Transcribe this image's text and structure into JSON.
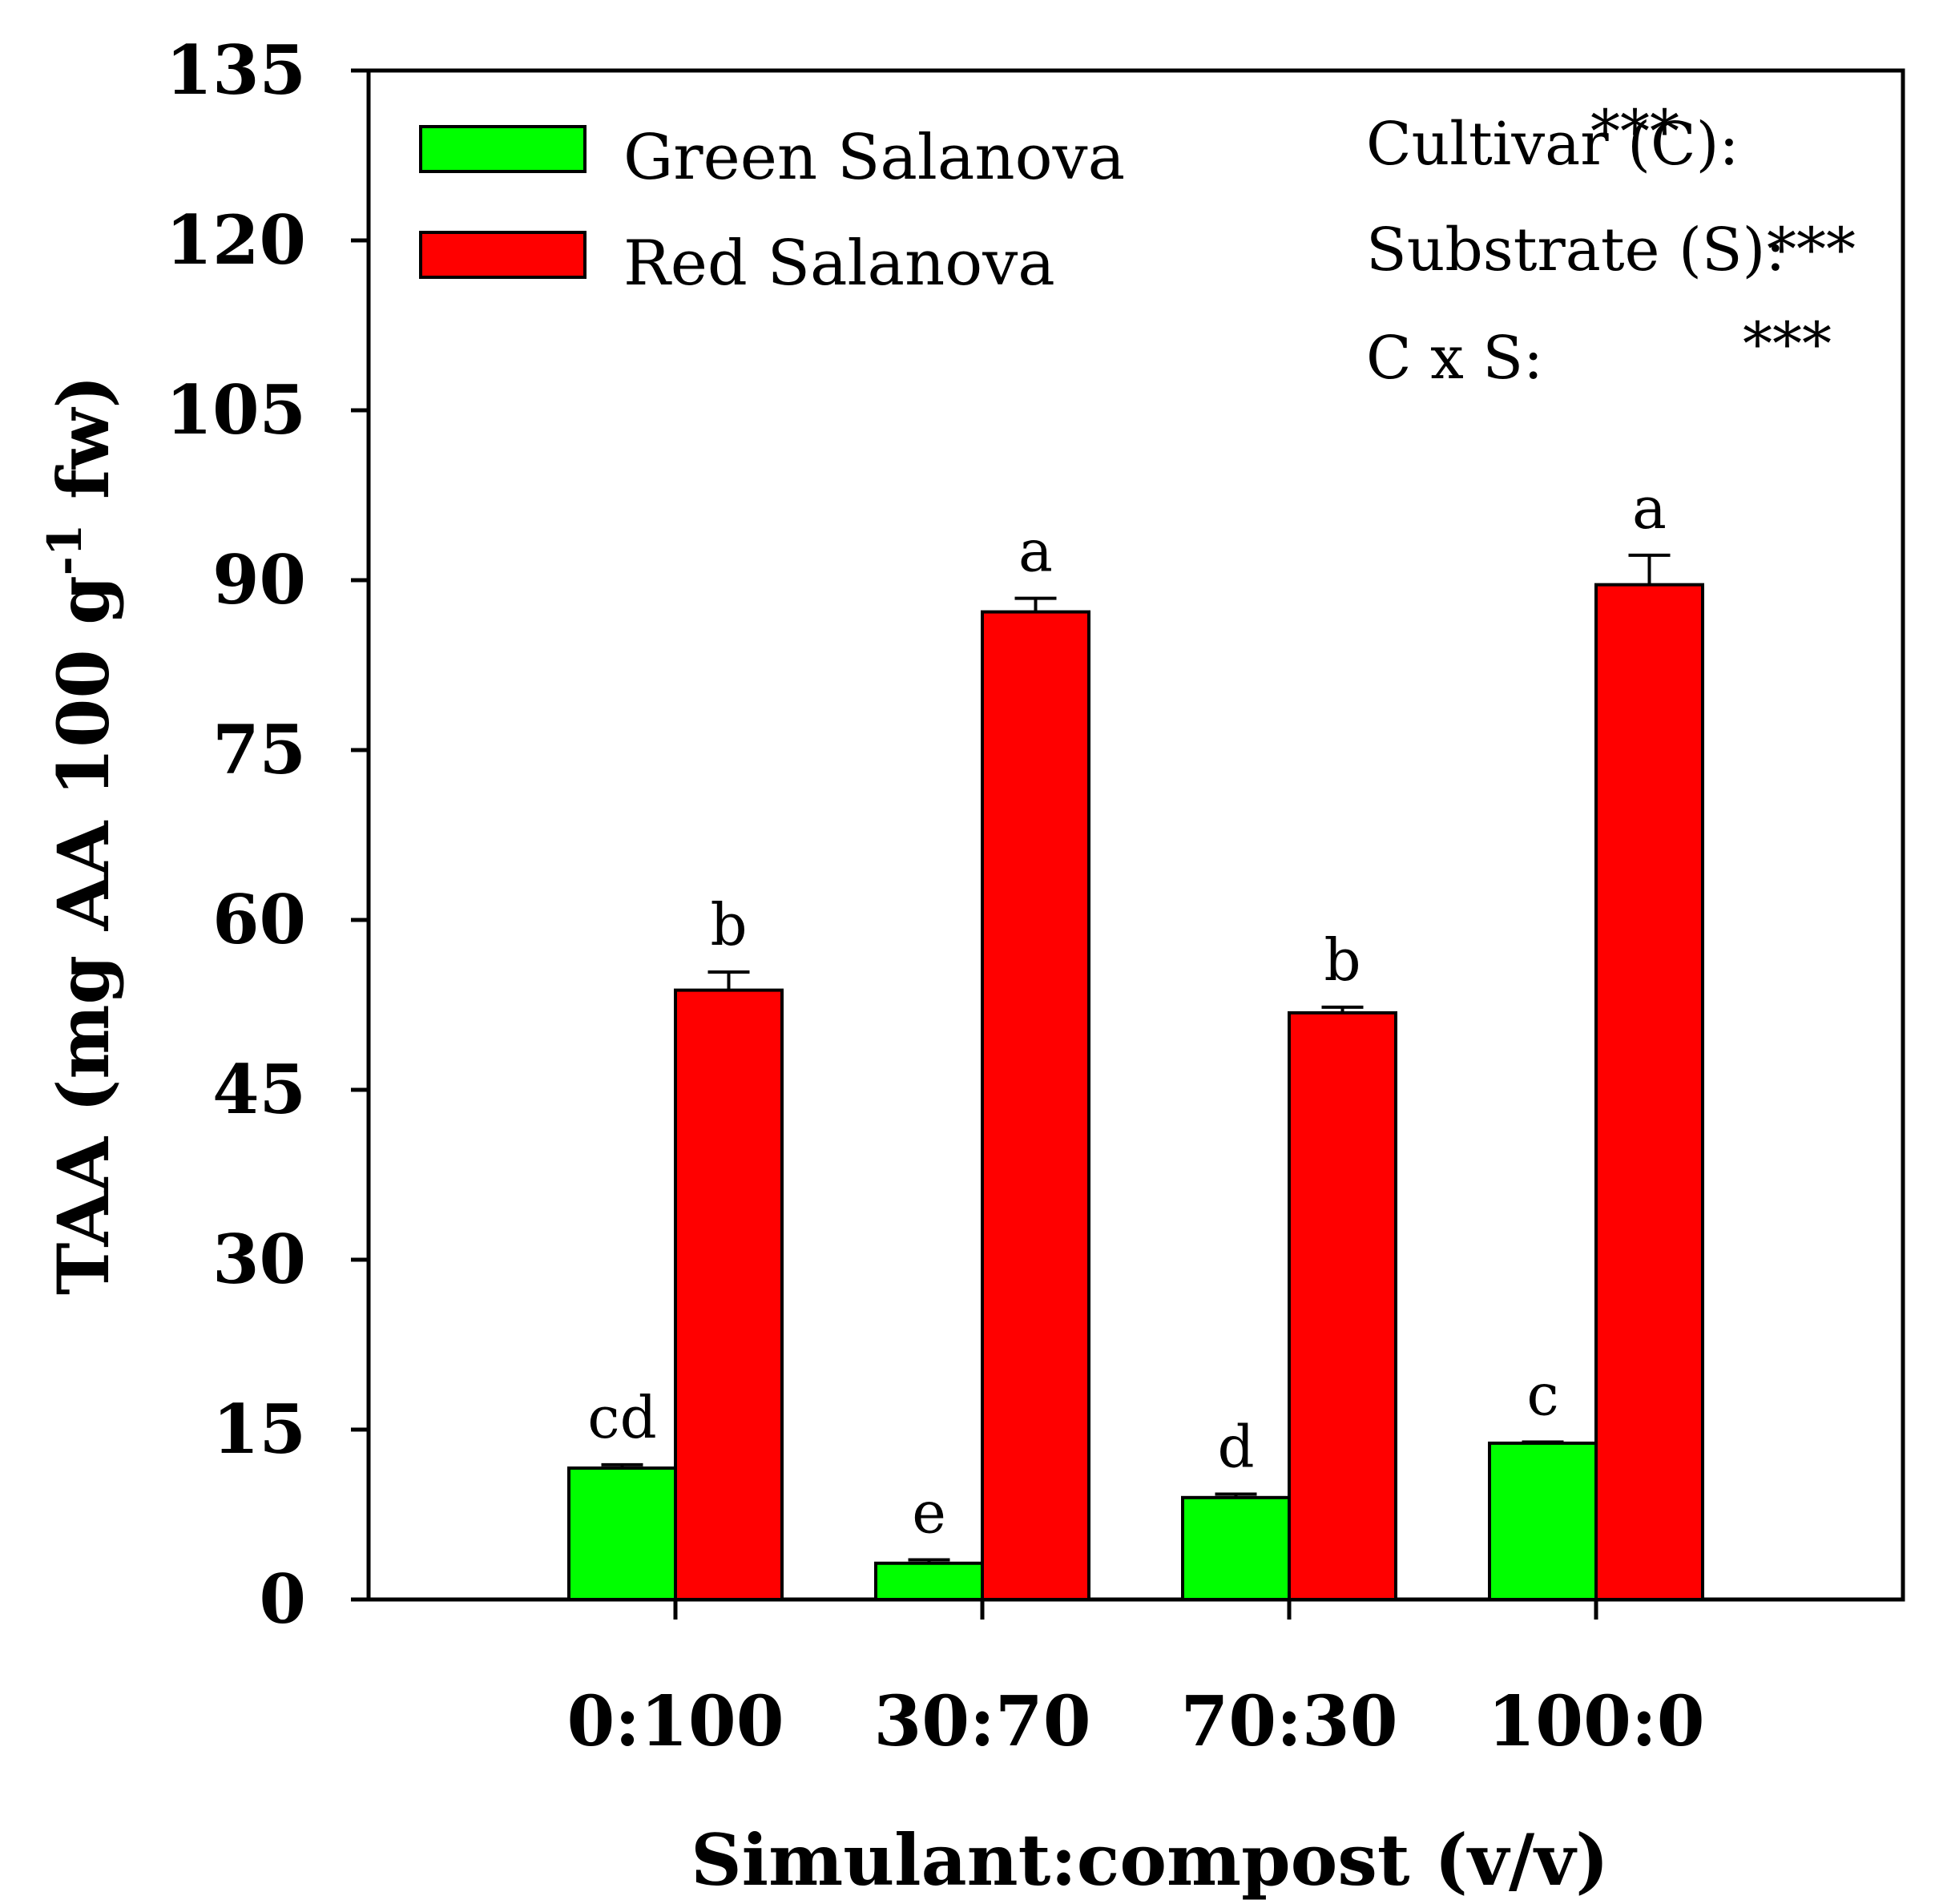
{
  "chart_data": {
    "type": "bar",
    "ylabel": "TAA (mg AA 100 g",
    "ylabel_sup": "-1",
    "ylabel_end": " fw)",
    "xlabel": "Simulant:compost (v/v)",
    "ylim": [
      0,
      135
    ],
    "yticks": [
      "0",
      "15",
      "30",
      "45",
      "60",
      "75",
      "90",
      "105",
      "120",
      "135"
    ],
    "categories": [
      "0:100",
      "30:70",
      "70:30",
      "100:0"
    ],
    "series": [
      {
        "name": "Green Salanova",
        "color": "#00ff00",
        "values": [
          11.6,
          3.2,
          9.0,
          13.8
        ],
        "errors": [
          0.3,
          0.3,
          0.3,
          0.1
        ],
        "letters": [
          "cd",
          "e",
          "d",
          "c"
        ]
      },
      {
        "name": "Red Salanova",
        "color": "#ff0000",
        "values": [
          53.8,
          87.2,
          51.8,
          89.6
        ],
        "errors": [
          1.6,
          1.2,
          0.5,
          2.6
        ],
        "letters": [
          "b",
          "a",
          "b",
          "a"
        ]
      }
    ],
    "stats": [
      {
        "label": "Cultivar (C):",
        "value": "***"
      },
      {
        "label": "Substrate (S):",
        "value": "***"
      },
      {
        "label": "C x S:",
        "value": "***"
      }
    ]
  }
}
